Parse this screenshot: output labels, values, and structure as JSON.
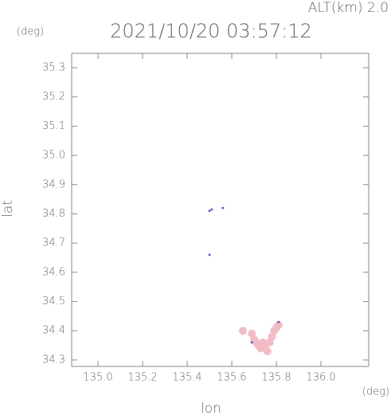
{
  "chart_data": {
    "type": "scatter",
    "title": "2021/10/20 03:57:12",
    "annotation": "ALT(km) 2.0",
    "y_unit": "(deg)",
    "x_unit": "(deg)",
    "xlabel": "lon",
    "ylabel": "lat",
    "xlim": [
      134.882,
      136.214
    ],
    "ylim": [
      34.278,
      35.349
    ],
    "xticks": [
      {
        "value": 135.0,
        "label": "135.0"
      },
      135.2,
      135.4,
      135.6,
      135.8,
      {
        "value": 136.0,
        "label": "136.0"
      }
    ],
    "yticks": [
      34.3,
      34.4,
      34.5,
      34.6,
      34.7,
      34.8,
      34.9,
      {
        "value": 35.0,
        "label": "35.0"
      },
      35.1,
      35.2,
      35.3
    ],
    "series": [
      {
        "color": "#f2bcc6",
        "x": [
          135.65,
          135.69,
          135.7,
          135.72,
          135.74,
          135.75,
          135.76,
          135.78,
          135.8,
          135.81,
          135.79,
          135.73,
          135.77,
          135.71
        ],
        "y": [
          34.4,
          34.39,
          34.37,
          34.35,
          34.36,
          34.34,
          34.33,
          34.38,
          34.41,
          34.42,
          34.4,
          34.34,
          34.36,
          34.36
        ]
      },
      {
        "color": "#6a5acd",
        "x": [
          135.5,
          135.51,
          135.56,
          135.5,
          135.69,
          135.81
        ],
        "y": [
          34.81,
          34.815,
          34.82,
          34.66,
          34.36,
          34.43
        ]
      }
    ]
  }
}
